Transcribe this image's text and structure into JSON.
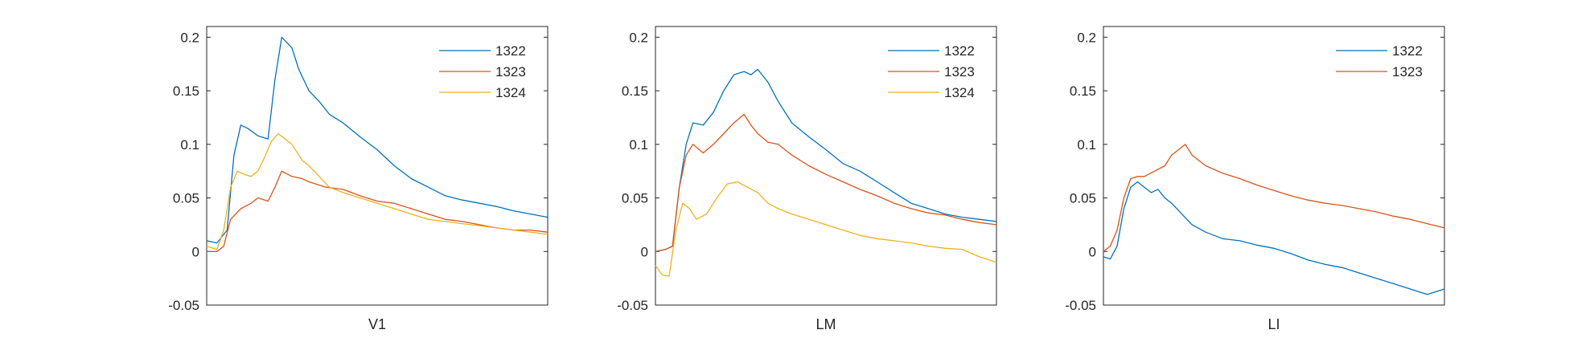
{
  "figure": {
    "background": "#ffffff",
    "axis_color": "#262626",
    "series_colors": {
      "1322": "#0072BD",
      "1323": "#D95319",
      "1324": "#EDB120"
    }
  },
  "chart_data": [
    {
      "type": "line",
      "xlabel": "V1",
      "ylabel": "",
      "title": "",
      "ylim": [
        -0.05,
        0.21
      ],
      "yticks": [
        -0.05,
        0,
        0.05,
        0.1,
        0.15,
        0.2
      ],
      "ytick_labels": [
        "-0.05",
        "0",
        "0.05",
        "0.1",
        "0.15",
        "0.2"
      ],
      "xlim": [
        0,
        1
      ],
      "xticks_visible": false,
      "legend": {
        "location": "top-right",
        "entries": [
          "1322",
          "1323",
          "1324"
        ]
      },
      "series": [
        {
          "name": "1322",
          "color": "#0072BD",
          "x": [
            0,
            0.03,
            0.06,
            0.08,
            0.1,
            0.12,
            0.15,
            0.18,
            0.2,
            0.22,
            0.25,
            0.27,
            0.3,
            0.33,
            0.36,
            0.4,
            0.45,
            0.5,
            0.55,
            0.6,
            0.65,
            0.7,
            0.75,
            0.8,
            0.85,
            0.9,
            0.95,
            1.0
          ],
          "y": [
            0.01,
            0.008,
            0.02,
            0.09,
            0.118,
            0.115,
            0.108,
            0.105,
            0.16,
            0.2,
            0.19,
            0.17,
            0.15,
            0.14,
            0.128,
            0.12,
            0.107,
            0.095,
            0.08,
            0.068,
            0.06,
            0.052,
            0.048,
            0.045,
            0.042,
            0.038,
            0.035,
            0.032
          ]
        },
        {
          "name": "1323",
          "color": "#D95319",
          "x": [
            0,
            0.03,
            0.05,
            0.07,
            0.1,
            0.13,
            0.15,
            0.18,
            0.2,
            0.22,
            0.25,
            0.28,
            0.3,
            0.35,
            0.4,
            0.45,
            0.5,
            0.55,
            0.6,
            0.65,
            0.7,
            0.75,
            0.8,
            0.85,
            0.9,
            0.95,
            1.0
          ],
          "y": [
            0,
            0,
            0.005,
            0.03,
            0.04,
            0.045,
            0.05,
            0.047,
            0.06,
            0.075,
            0.07,
            0.068,
            0.065,
            0.06,
            0.058,
            0.052,
            0.047,
            0.045,
            0.04,
            0.035,
            0.03,
            0.028,
            0.025,
            0.022,
            0.02,
            0.02,
            0.018
          ]
        },
        {
          "name": "1324",
          "color": "#EDB120",
          "x": [
            0,
            0.03,
            0.05,
            0.07,
            0.09,
            0.11,
            0.13,
            0.15,
            0.17,
            0.19,
            0.21,
            0.23,
            0.25,
            0.28,
            0.3,
            0.33,
            0.36,
            0.4,
            0.45,
            0.5,
            0.55,
            0.6,
            0.65,
            0.7,
            0.75,
            0.8,
            0.85,
            0.9,
            0.95,
            1.0
          ],
          "y": [
            0.005,
            0.002,
            0.02,
            0.06,
            0.075,
            0.072,
            0.07,
            0.075,
            0.088,
            0.103,
            0.11,
            0.105,
            0.1,
            0.085,
            0.08,
            0.07,
            0.06,
            0.055,
            0.05,
            0.045,
            0.04,
            0.035,
            0.03,
            0.028,
            0.026,
            0.024,
            0.022,
            0.02,
            0.018,
            0.016
          ]
        }
      ]
    },
    {
      "type": "line",
      "xlabel": "LM",
      "ylabel": "",
      "title": "",
      "ylim": [
        -0.05,
        0.21
      ],
      "yticks": [
        -0.05,
        0,
        0.05,
        0.1,
        0.15,
        0.2
      ],
      "ytick_labels": [
        "-0.05",
        "0",
        "0.05",
        "0.1",
        "0.15",
        "0.2"
      ],
      "xlim": [
        0,
        1
      ],
      "xticks_visible": false,
      "legend": {
        "location": "top-right",
        "entries": [
          "1322",
          "1323",
          "1324"
        ]
      },
      "series": [
        {
          "name": "1322",
          "color": "#0072BD",
          "x": [
            0,
            0.03,
            0.05,
            0.07,
            0.09,
            0.11,
            0.14,
            0.17,
            0.2,
            0.23,
            0.26,
            0.28,
            0.3,
            0.33,
            0.36,
            0.4,
            0.45,
            0.5,
            0.55,
            0.6,
            0.65,
            0.7,
            0.75,
            0.8,
            0.85,
            0.9,
            0.95,
            1.0
          ],
          "y": [
            0,
            0.002,
            0.005,
            0.06,
            0.1,
            0.12,
            0.118,
            0.13,
            0.15,
            0.165,
            0.168,
            0.165,
            0.17,
            0.158,
            0.14,
            0.12,
            0.107,
            0.095,
            0.082,
            0.075,
            0.065,
            0.055,
            0.045,
            0.04,
            0.035,
            0.032,
            0.03,
            0.028
          ]
        },
        {
          "name": "1323",
          "color": "#D95319",
          "x": [
            0,
            0.03,
            0.05,
            0.07,
            0.09,
            0.11,
            0.14,
            0.17,
            0.2,
            0.23,
            0.26,
            0.28,
            0.3,
            0.33,
            0.36,
            0.4,
            0.45,
            0.5,
            0.55,
            0.6,
            0.65,
            0.7,
            0.75,
            0.8,
            0.85,
            0.9,
            0.95,
            1.0
          ],
          "y": [
            0,
            0.002,
            0.005,
            0.06,
            0.09,
            0.1,
            0.092,
            0.1,
            0.11,
            0.12,
            0.128,
            0.118,
            0.11,
            0.102,
            0.1,
            0.09,
            0.08,
            0.072,
            0.065,
            0.058,
            0.052,
            0.045,
            0.04,
            0.036,
            0.034,
            0.03,
            0.027,
            0.025
          ]
        },
        {
          "name": "1324",
          "color": "#EDB120",
          "x": [
            0,
            0.02,
            0.04,
            0.06,
            0.08,
            0.1,
            0.12,
            0.15,
            0.18,
            0.21,
            0.24,
            0.27,
            0.3,
            0.33,
            0.36,
            0.4,
            0.45,
            0.5,
            0.55,
            0.6,
            0.65,
            0.7,
            0.75,
            0.8,
            0.85,
            0.9,
            0.95,
            1.0
          ],
          "y": [
            -0.013,
            -0.022,
            -0.023,
            0.02,
            0.045,
            0.04,
            0.03,
            0.035,
            0.05,
            0.063,
            0.065,
            0.06,
            0.055,
            0.045,
            0.04,
            0.035,
            0.03,
            0.025,
            0.02,
            0.015,
            0.012,
            0.01,
            0.008,
            0.005,
            0.003,
            0.002,
            -0.005,
            -0.01
          ]
        }
      ]
    },
    {
      "type": "line",
      "xlabel": "LI",
      "ylabel": "",
      "title": "",
      "ylim": [
        -0.05,
        0.21
      ],
      "yticks": [
        -0.05,
        0,
        0.05,
        0.1,
        0.15,
        0.2
      ],
      "ytick_labels": [
        "-0.05",
        "0",
        "0.05",
        "0.1",
        "0.15",
        "0.2"
      ],
      "xlim": [
        0,
        1
      ],
      "xticks_visible": false,
      "legend": {
        "location": "top-right",
        "entries": [
          "1322",
          "1323"
        ]
      },
      "series": [
        {
          "name": "1322",
          "color": "#0072BD",
          "x": [
            0,
            0.02,
            0.04,
            0.06,
            0.08,
            0.1,
            0.12,
            0.14,
            0.16,
            0.18,
            0.2,
            0.23,
            0.26,
            0.3,
            0.35,
            0.4,
            0.45,
            0.5,
            0.55,
            0.6,
            0.65,
            0.7,
            0.75,
            0.8,
            0.85,
            0.9,
            0.95,
            1.0
          ],
          "y": [
            -0.005,
            -0.007,
            0.005,
            0.04,
            0.06,
            0.065,
            0.06,
            0.055,
            0.058,
            0.05,
            0.045,
            0.035,
            0.025,
            0.018,
            0.012,
            0.01,
            0.006,
            0.003,
            -0.002,
            -0.008,
            -0.012,
            -0.015,
            -0.02,
            -0.025,
            -0.03,
            -0.035,
            -0.04,
            -0.035
          ]
        },
        {
          "name": "1323",
          "color": "#D95319",
          "x": [
            0,
            0.02,
            0.04,
            0.06,
            0.08,
            0.1,
            0.12,
            0.15,
            0.18,
            0.2,
            0.22,
            0.24,
            0.26,
            0.3,
            0.35,
            0.4,
            0.45,
            0.5,
            0.55,
            0.6,
            0.65,
            0.7,
            0.75,
            0.8,
            0.85,
            0.9,
            0.95,
            1.0
          ],
          "y": [
            0,
            0.005,
            0.02,
            0.05,
            0.068,
            0.07,
            0.07,
            0.075,
            0.08,
            0.09,
            0.095,
            0.1,
            0.09,
            0.08,
            0.073,
            0.068,
            0.062,
            0.057,
            0.052,
            0.048,
            0.045,
            0.043,
            0.04,
            0.037,
            0.033,
            0.03,
            0.026,
            0.022
          ]
        }
      ]
    }
  ]
}
